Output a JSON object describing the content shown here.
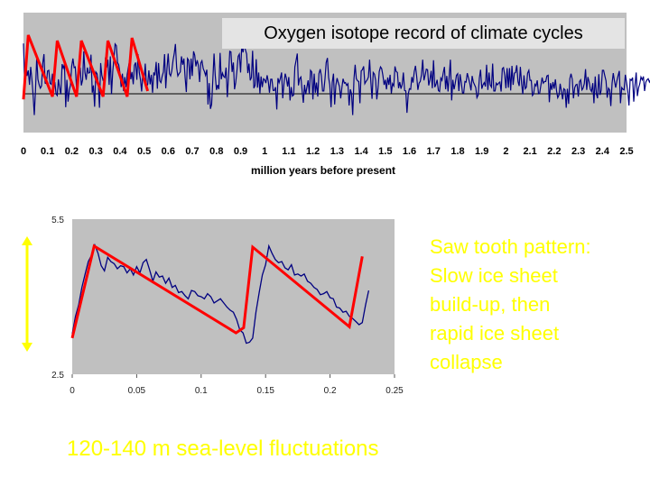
{
  "slide": {
    "title": "Oxygen isotope record of climate cycles",
    "annotation_lines": [
      "Saw tooth pattern:",
      "Slow ice sheet",
      "build-up, then",
      "rapid ice sheet",
      "collapse"
    ],
    "caption": "120-140 m sea-level fluctuations"
  },
  "colors": {
    "plot_bg": "#c0c0c0",
    "series": "#000080",
    "sawtooth": "#ff0000",
    "text_yellow": "#ffff00",
    "title_bg": "#e4e4e4"
  },
  "chart_data": [
    {
      "id": "top",
      "type": "line",
      "title": "Oxygen isotope record of climate cycles",
      "xlabel": "million years before present",
      "ylabel": "",
      "xlim": [
        0,
        2.5
      ],
      "x_ticks": [
        "0",
        "0.1",
        "0.2",
        "0.3",
        "0.4",
        "0.5",
        "0.6",
        "0.7",
        "0.8",
        "0.9",
        "1",
        "1.1",
        "1.2",
        "1.3",
        "1.4",
        "1.5",
        "1.6",
        "1.7",
        "1.8",
        "1.9",
        "2",
        "2.1",
        "2.2",
        "2.3",
        "2.4",
        "2.5"
      ],
      "ylim": [
        -1,
        1
      ],
      "reference_line": 0,
      "series": [
        {
          "name": "oxygen isotope",
          "x_step": 0.005,
          "values": [
            0.9,
            0.25,
            0.53,
            0.32,
            0.42,
            0.16,
            0.48,
            0.25,
            -0.03,
            -0.38,
            0.1,
            0.66,
            0.26,
            0.16,
            0.1,
            0.14,
            0.55,
            0.71,
            0.19,
            0.18,
            0.41,
            0.42,
            0.19,
            0.17,
            0.36,
            0.08,
            0.21,
            0.0,
            -0.03,
            0.26,
            0.1,
            -0.01,
            0.53,
            0.46,
            0.53,
            -0.24,
            0.25,
            -0.14,
            0.07,
            0.16,
            0.49,
            0.63,
            0.47,
            0.48,
            0.1,
            0.37,
            0.37,
            0.47,
            0.15,
            0.25,
            0.76,
            0.38,
            0.25,
            0.47,
            0.37,
            0.38,
            0.7,
            0.02,
            0.15,
            -0.23,
            0.39,
            0.36,
            0.2,
            -0.25,
            0.55,
            0.33,
            0.24,
            0.25,
            0.65,
            0.47,
            0.61,
            0.16,
            0.67,
            -0.01,
            0.4,
            0.63,
            0.89,
            0.86,
            0.56,
            0.52,
            0.37,
            0.12,
            0.36,
            0.05,
            0.3,
            0.12,
            0.35,
            0.47,
            0.61,
            0.26,
            0.39,
            0.17,
            0.51,
            0.56,
            0.25,
            0.71,
            0.38,
            0.25,
            0.04,
            0.38,
            0.22,
            0.54,
            0.12,
            0.17,
            0.42,
            0.17,
            0.34,
            0.02,
            0.38,
            0.33,
            0.57,
            0.09,
            0.55,
            0.23,
            0.2,
            0.31,
            0.39,
            0.71,
            0.1,
            0.46,
            0.72,
            0.36,
            0.32,
            0.41,
            0.6,
            0.72,
            0.89,
            0.46,
            0.32,
            0.36,
            0.39,
            0.67,
            0.52,
            0.63,
            0.3,
            0.03,
            0.63,
            0.6,
            0.26,
            0.63,
            0.32,
            0.76,
            0.69,
            0.49,
            0.6,
            0.51,
            0.21,
            0.55,
            0.59,
            0.45,
            0.4,
            0.33,
            0.43,
            -0.19,
            0.19,
            -0.27,
            -0.19,
            0.27,
            0.72,
            0.33,
            0.07,
            0.16,
            0.08,
            0.73,
            0.26,
            0.37,
            0.31,
            0.29,
            0.47,
            -0.06,
            0.3,
            0.76,
            0.75,
            0.39,
            0.56,
            0.08,
            0.2,
            0.42,
            0.67,
            0.71,
            0.38,
            0.87,
            0.74,
            0.93,
            0.79,
            0.71,
            0.37,
            0.54,
            0.24,
            0.29,
            0.77,
            0.1,
            0.15,
            0.62,
            0.11,
            0.38,
            0.01,
            0.31,
            0.12,
            0.27,
            0.25,
            0.19,
            0.33,
            0.22,
            0.02,
            0.26,
            0.26,
            0.06,
            0.06,
            0.12,
            -0.28,
            0.28,
            0.2,
            0.28,
            0.38,
            -0.08,
            0.19,
            0.36,
            0.28,
            0.13,
            0.3,
            -0.12,
            0.12,
            -0.04,
            -0.02,
            0.48,
            0.59,
            0.72,
            0.15,
            0.27,
            0.3,
            0.07,
            -0.16,
            0.16,
            -0.01,
            0.12,
            0.24,
            0.0,
            0.42,
            0.39,
            -0.1,
            0.36,
            0.02,
            0.2,
            -0.05,
            0.36,
            0.44,
            0.32,
            0.05,
            0.05,
            0.27,
            0.56,
            0.64,
            0.29,
            0.16,
            -0.24,
            0.2,
            0.36,
            -0.19,
            0.15,
            0.28,
            0.2,
            0.13,
            -0.08,
            0.11,
            0.27,
            0.19,
            0.2,
            0.15,
            0.18,
            -0.21,
            0.08,
            0.0,
            -0.38,
            0.27,
            0.52,
            0.27,
            0.23,
            0.22,
            -0.17,
            0.41,
            0.43,
            0.49,
            0.18,
            0.22,
            0.25,
            0.3,
            0.61,
            0.21,
            -0.09,
            0.38,
            0.35,
            0.24,
            -0.1,
            0.11,
            0.4,
            0.48,
            0.45,
            0.33,
            0.16,
            0.25,
            0.08,
            0.29,
            0.16,
            0.34,
            0.01,
            0.18,
            0.14,
            0.49,
            0.4,
            0.38,
            0.1,
            0.21,
            0.09,
            0.17,
            0.38,
            0.06,
            0.05,
            -0.34,
            -0.01,
            0.09,
            0.08,
            0.3,
            0.2,
            0.4,
            0.5,
            0.32,
            0.07,
            0.19,
            0.22,
            0.34,
            0.61,
            0.24,
            0.33,
            0.44,
            0.43,
            0.15,
            0.25,
            0.41,
            0.1,
            0.6,
            0.12,
            0.17,
            0.25,
            0.06,
            0.04,
            0.28,
            0.24,
            0.37,
            0.48,
            0.08,
            0.32,
            0.04,
            0.32,
            0.61,
            -0.12,
            0.25,
            0.08,
            0.19,
            0.33,
            0.36,
            0.05,
            0.35,
            0.2,
            0.02,
            0.01,
            0.22,
            0.21,
            0.37,
            0.28,
            0.19,
            0.06,
            0.32,
            0.21,
            0.16,
            0.11,
            -0.07,
            -0.02,
            0.28,
            0.43,
            0.09,
            0.16,
            0.2,
            0.13,
            0.52,
            0.07,
            0.38,
            0.16,
            0.12,
            0.54,
            0.05,
            0.05,
            0.19,
            0.16,
            0.19,
            0.21,
            0.04,
            0.45,
            0.47,
            0.33,
            0.1,
            0.46,
            0.11,
            0.46,
            0.06,
            0.5,
            0.16,
            0.37,
            0.38,
            0.51,
            0.22,
            0.14,
            0.48,
            0.18,
            -0.01,
            0.33,
            0.09,
            0.12,
            0.37,
            0.42,
            0.24,
            0.24,
            -0.03,
            0.0,
            0.17,
            0.14,
            0.24,
            0.0,
            0.01,
            0.15,
            0.29,
            0.19,
            0.22,
            0.22,
            0.32,
            0.33,
            -0.15,
            0.19,
            0.07,
            0.21,
            0.09,
            0.26,
            0.05,
            -0.07,
            -0.02,
            0.18,
            0.04,
            -0.1,
            0.09,
            0.07,
            -0.25,
            0.09,
            -0.18,
            0.27,
            0.36,
            0.26,
            -0.08,
            0.11,
            0.16,
            0.17,
            -0.05,
            0.22,
            0.25,
            0.07,
            0.1,
            0.18,
            0.44,
            0.07,
            0.3,
            0.21,
            0.08,
            0.04,
            0.19,
            -0.17,
            0.31,
            0.0,
            -0.08,
            0.35,
            -0.02,
            0.06,
            0.42,
            0.42,
            0.32,
            0.23,
            -0.07,
            0.1,
            0.07,
            -0.22,
            0.19,
            0.37,
            0.23,
            0.11,
            0.23,
            0.32,
            0.41,
            -0.17,
            0.11,
            0.08,
            0.07,
            0.34,
            0.21,
            0.06,
            -0.21,
            0.26,
            0.24,
            0.29,
            -0.14,
            0.16,
            0.38,
            -0.04,
            0.11,
            0.18,
            0.3,
            0.25,
            0.31,
            0.05,
            0.21,
            0.25,
            0.27,
            0.21,
            0.25,
            0.02,
            0.1,
            0.15,
            0.08,
            -0.18,
            0.06,
            0.4,
            0.48,
            0.54,
            0.33,
            0.09,
            0.18,
            0.01
          ]
        }
      ],
      "overlays": [
        {
          "name": "sawtooth",
          "points": [
            [
              0.0,
              -0.1
            ],
            [
              0.02,
              1.05
            ],
            [
              0.12,
              -0.05
            ],
            [
              0.14,
              0.95
            ],
            [
              0.22,
              -0.05
            ],
            [
              0.24,
              0.95
            ],
            [
              0.33,
              -0.05
            ],
            [
              0.35,
              0.95
            ],
            [
              0.43,
              -0.05
            ],
            [
              0.45,
              1.0
            ],
            [
              0.515,
              0.05
            ]
          ]
        }
      ]
    },
    {
      "id": "bottom",
      "type": "line",
      "title": "",
      "xlabel": "",
      "ylabel": "",
      "xlim": [
        0,
        0.25
      ],
      "ylim": [
        2.5,
        5.5
      ],
      "x_ticks": [
        "0",
        "0.05",
        "0.1",
        "0.15",
        "0.2",
        "0.25"
      ],
      "y_ticks": [
        "2.5",
        "5.5"
      ],
      "series": [
        {
          "name": "detail",
          "x_step": 0.0025,
          "values": [
            3.28,
            3.62,
            3.84,
            4.18,
            4.44,
            4.68,
            4.8,
            5.0,
            4.84,
            4.6,
            4.5,
            4.76,
            4.68,
            4.64,
            4.54,
            4.6,
            4.58,
            4.46,
            4.54,
            4.42,
            4.58,
            4.46,
            4.66,
            4.72,
            4.52,
            4.3,
            4.48,
            4.38,
            4.4,
            4.26,
            4.36,
            4.18,
            4.22,
            4.08,
            4.1,
            4.02,
            3.96,
            4.12,
            4.1,
            4.02,
            4.0,
            3.96,
            4.06,
            4.0,
            3.88,
            3.92,
            3.96,
            3.88,
            3.8,
            3.74,
            3.7,
            3.56,
            3.36,
            3.3,
            3.1,
            3.12,
            3.2,
            3.7,
            4.08,
            4.42,
            4.62,
            4.98,
            4.84,
            4.72,
            4.66,
            4.68,
            4.56,
            4.52,
            4.62,
            4.42,
            4.44,
            4.4,
            4.44,
            4.3,
            4.26,
            4.18,
            4.14,
            4.04,
            4.06,
            4.1,
            3.98,
            3.96,
            3.8,
            3.78,
            3.7,
            3.72,
            3.62,
            3.58,
            3.52,
            3.46,
            3.5,
            3.84,
            4.12
          ]
        }
      ],
      "overlays": [
        {
          "name": "sawtooth",
          "points": [
            [
              0.0,
              3.2
            ],
            [
              0.017,
              4.98
            ],
            [
              0.127,
              3.3
            ],
            [
              0.133,
              3.4
            ],
            [
              0.14,
              4.96
            ],
            [
              0.215,
              3.42
            ],
            [
              0.225,
              4.78
            ]
          ]
        }
      ],
      "error_bar": {
        "orientation": "vertical",
        "color": "#ffff00"
      }
    }
  ]
}
